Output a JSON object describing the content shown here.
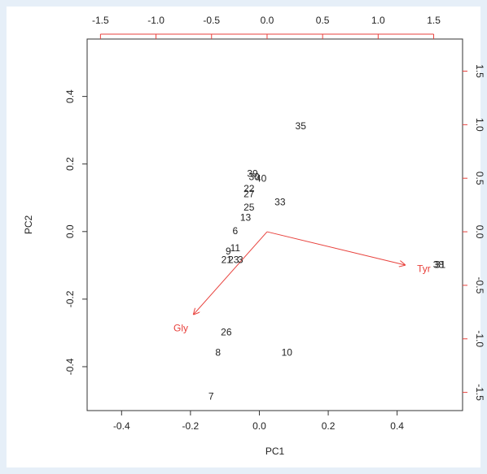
{
  "chart_data": {
    "type": "biplot",
    "xlabel": "PC1",
    "ylabel": "PC2",
    "xlim": [
      -0.5,
      0.59
    ],
    "ylim": [
      -0.53,
      0.57
    ],
    "xticks": [
      -0.4,
      -0.2,
      {
        "value": 0,
        "label": "0.0"
      },
      0.2,
      0.4
    ],
    "yticks": [
      -0.4,
      -0.2,
      {
        "value": 0,
        "label": "0.0"
      },
      0.2,
      0.4
    ],
    "x2lim": [
      -1.62,
      1.76
    ],
    "y2lim": [
      -1.67,
      1.8
    ],
    "x2ticks": [
      -1.5,
      {
        "value": -1,
        "label": "-1.0"
      },
      -0.5,
      {
        "value": 0,
        "label": "0.0"
      },
      0.5,
      {
        "value": 1,
        "label": "1.0"
      },
      1.5
    ],
    "y2ticks": [
      -1.5,
      {
        "value": -1,
        "label": "-1.0"
      },
      -0.5,
      {
        "value": 0,
        "label": "0.0"
      },
      0.5,
      {
        "value": 1,
        "label": "1.0"
      },
      1.5
    ],
    "points": {
      "labels": [
        "35",
        "26",
        "8",
        "10",
        "7",
        "33",
        "38",
        "31",
        "39",
        "30",
        "40",
        "22",
        "27",
        "25",
        "13",
        "6",
        "11",
        "9",
        "23",
        "3",
        "21"
      ],
      "x": [
        0.12,
        -0.096,
        -0.12,
        0.08,
        -0.14,
        0.06,
        0.52,
        0.525,
        -0.02,
        -0.015,
        0.005,
        -0.03,
        -0.03,
        -0.03,
        -0.04,
        -0.07,
        -0.07,
        -0.09,
        -0.075,
        -0.055,
        -0.095
      ],
      "y": [
        0.31,
        -0.3,
        -0.36,
        -0.36,
        -0.49,
        0.085,
        -0.1,
        -0.1,
        0.17,
        0.16,
        0.155,
        0.125,
        0.11,
        0.07,
        0.04,
        0.0,
        -0.05,
        -0.06,
        -0.085,
        -0.085,
        -0.085
      ]
    },
    "loadings": {
      "labels": [
        "Gly",
        "Tyr"
      ],
      "x": [
        -0.66,
        1.24
      ],
      "y": [
        -0.77,
        -0.31
      ],
      "color": "#e8413c"
    }
  }
}
